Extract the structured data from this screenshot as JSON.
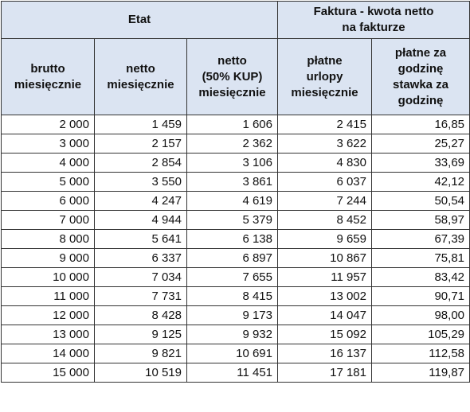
{
  "table": {
    "groups": [
      {
        "label": "Etat",
        "span": 3
      },
      {
        "label": "Faktura - kwota netto\nna fakturze",
        "span": 2
      }
    ],
    "columns": [
      "brutto\nmiesięcznie",
      "netto\nmiesięcznie",
      "netto\n(50% KUP)\nmiesięcznie",
      "płatne\nurlopy\nmiesięcznie",
      "płatne za\ngodzinę\nstawka za\ngodzinę"
    ],
    "rows": [
      [
        "2 000",
        "1 459",
        "1 606",
        "2 415",
        "16,85"
      ],
      [
        "3 000",
        "2 157",
        "2 362",
        "3 622",
        "25,27"
      ],
      [
        "4 000",
        "2 854",
        "3 106",
        "4 830",
        "33,69"
      ],
      [
        "5 000",
        "3 550",
        "3 861",
        "6 037",
        "42,12"
      ],
      [
        "6 000",
        "4 247",
        "4 619",
        "7 244",
        "50,54"
      ],
      [
        "7 000",
        "4 944",
        "5 379",
        "8 452",
        "58,97"
      ],
      [
        "8 000",
        "5 641",
        "6 138",
        "9 659",
        "67,39"
      ],
      [
        "9 000",
        "6 337",
        "6 897",
        "10 867",
        "75,81"
      ],
      [
        "10 000",
        "7 034",
        "7 655",
        "11 957",
        "83,42"
      ],
      [
        "11 000",
        "7 731",
        "8 415",
        "13 002",
        "90,71"
      ],
      [
        "12 000",
        "8 428",
        "9 173",
        "14 047",
        "98,00"
      ],
      [
        "13 000",
        "9 125",
        "9 932",
        "15 092",
        "105,29"
      ],
      [
        "14 000",
        "9 821",
        "10 691",
        "16 137",
        "112,58"
      ],
      [
        "15 000",
        "10 519",
        "11 451",
        "17 181",
        "119,87"
      ]
    ]
  },
  "colors": {
    "header_background": "#dbe4f2",
    "border": "#333333"
  }
}
